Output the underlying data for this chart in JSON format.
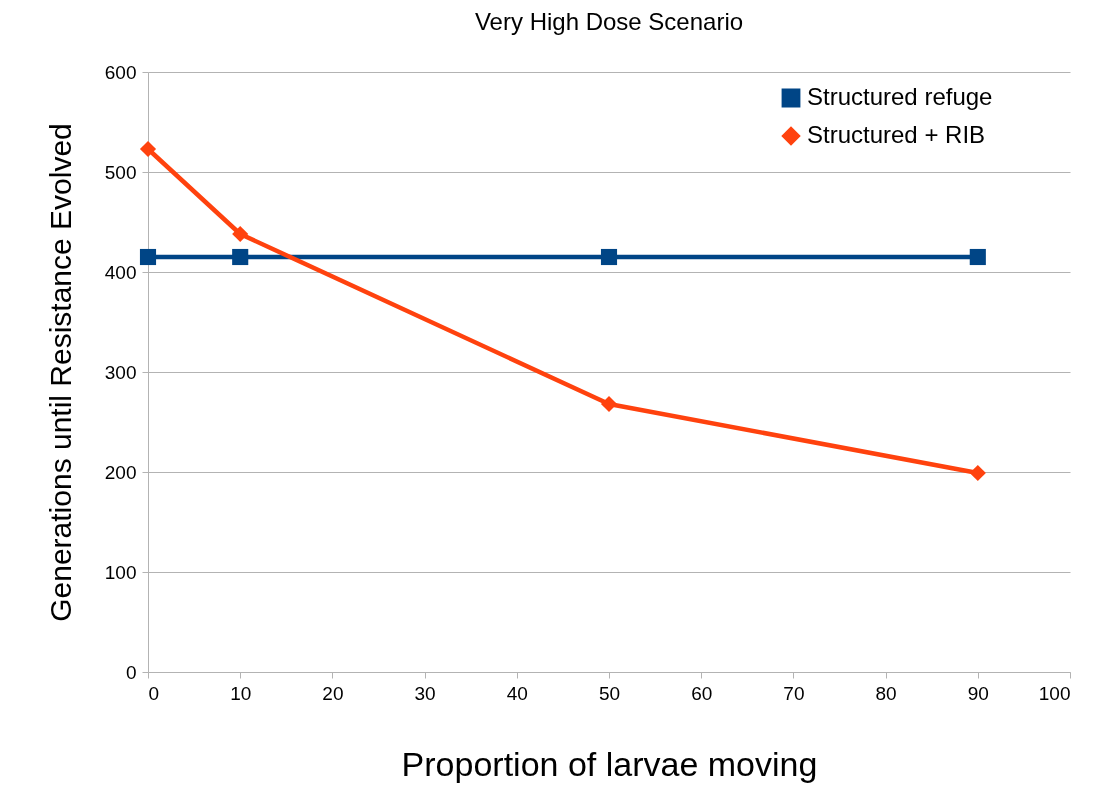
{
  "chart_data": {
    "type": "line",
    "title": "Very High Dose Scenario",
    "xlabel": "Proportion of larvae moving",
    "ylabel": "Generations until Resistance Evolved",
    "x": [
      0,
      10,
      50,
      90
    ],
    "series": [
      {
        "name": "Structured refuge",
        "color": "#004586",
        "marker": "square",
        "values": [
          415,
          415,
          415,
          415
        ]
      },
      {
        "name": "Structured + RIB",
        "color": "#ff420e",
        "marker": "diamond",
        "values": [
          523,
          438,
          268,
          199
        ]
      }
    ],
    "xlim": [
      0,
      100
    ],
    "xticks": [
      0,
      10,
      20,
      30,
      40,
      50,
      60,
      70,
      80,
      90,
      100
    ],
    "ylim": [
      0,
      600
    ],
    "yticks": [
      0,
      100,
      200,
      300,
      400,
      500,
      600
    ],
    "grid": "y",
    "legend": "top right",
    "line_style": "solid"
  }
}
